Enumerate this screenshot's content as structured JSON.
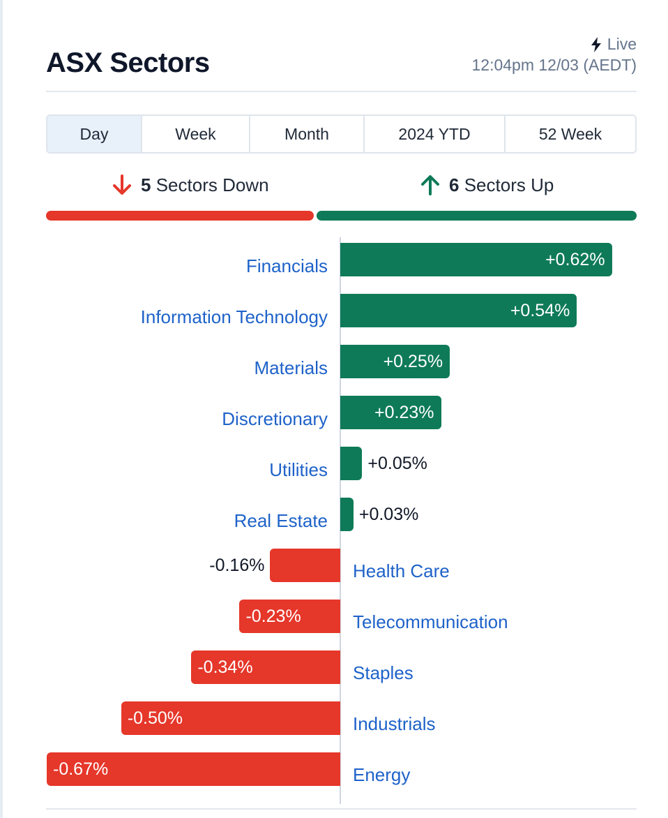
{
  "title": "ASX Sectors",
  "live_label": "Live",
  "timestamp": "12:04pm 12/03 (AEDT)",
  "tabs": [
    {
      "label": "Day",
      "active": true
    },
    {
      "label": "Week",
      "active": false
    },
    {
      "label": "Month",
      "active": false
    },
    {
      "label": "2024 YTD",
      "active": false
    },
    {
      "label": "52 Week",
      "active": false
    }
  ],
  "summary": {
    "down_count": "5",
    "down_label": "Sectors Down",
    "up_count": "6",
    "up_label": "Sectors Up"
  },
  "colors": {
    "up": "#0e7a58",
    "down": "#e5372a",
    "link": "#1e62c9"
  },
  "chart_data": {
    "type": "bar",
    "orientation": "horizontal-diverging",
    "unit": "%",
    "categories": [
      "Financials",
      "Information Technology",
      "Materials",
      "Discretionary",
      "Utilities",
      "Real Estate",
      "Health Care",
      "Telecommunication",
      "Staples",
      "Industrials",
      "Energy"
    ],
    "values": [
      0.62,
      0.54,
      0.25,
      0.23,
      0.05,
      0.03,
      -0.16,
      -0.23,
      -0.34,
      -0.5,
      -0.67
    ],
    "labels": [
      "+0.62%",
      "+0.54%",
      "+0.25%",
      "+0.23%",
      "+0.05%",
      "+0.03%",
      "-0.16%",
      "-0.23%",
      "-0.34%",
      "-0.50%",
      "-0.67%"
    ]
  }
}
